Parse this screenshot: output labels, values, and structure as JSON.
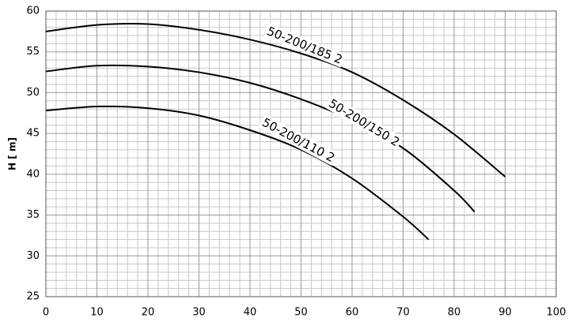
{
  "chart_data": {
    "type": "line",
    "ylabel": "H [ m]",
    "xlim": [
      0,
      100
    ],
    "xticks": [
      0,
      10,
      20,
      30,
      40,
      50,
      60,
      70,
      80,
      90,
      100
    ],
    "ylim": [
      25,
      60
    ],
    "yticks": [
      25,
      30,
      35,
      40,
      45,
      50,
      55,
      60
    ],
    "xminorticks": [
      2,
      4,
      6,
      8,
      12,
      14,
      16,
      18,
      22,
      24,
      26,
      28,
      32,
      34,
      36,
      38,
      42,
      44,
      46,
      48,
      52,
      54,
      56,
      58,
      62,
      64,
      66,
      68,
      72,
      74,
      76,
      78,
      82,
      84,
      86,
      88,
      92,
      94,
      96,
      98
    ],
    "yminorticks": [
      26,
      27,
      28,
      29,
      31,
      32,
      33,
      34,
      36,
      37,
      38,
      39,
      41,
      42,
      43,
      44,
      46,
      47,
      48,
      49,
      51,
      52,
      53,
      54,
      56,
      57,
      58,
      59
    ],
    "grid": true,
    "series": [
      {
        "name": "50-200/185 2",
        "color": "#000000",
        "x": [
          0,
          10,
          20,
          30,
          40,
          50,
          60,
          70,
          80,
          90
        ],
        "values": [
          57.5,
          58.3,
          58.4,
          57.7,
          56.5,
          54.8,
          52.5,
          49.1,
          44.9,
          39.7
        ]
      },
      {
        "name": "50-200/150 2",
        "color": "#000000",
        "x": [
          0,
          10,
          20,
          30,
          40,
          50,
          60,
          70,
          80,
          84
        ],
        "values": [
          52.6,
          53.3,
          53.2,
          52.5,
          51.2,
          49.2,
          46.6,
          43.2,
          38.0,
          35.4
        ]
      },
      {
        "name": "50-200/110 2",
        "color": "#000000",
        "x": [
          0,
          10,
          20,
          30,
          40,
          50,
          60,
          70,
          75
        ],
        "values": [
          47.8,
          48.3,
          48.1,
          47.2,
          45.4,
          43.0,
          39.5,
          34.8,
          32.0
        ]
      }
    ]
  }
}
